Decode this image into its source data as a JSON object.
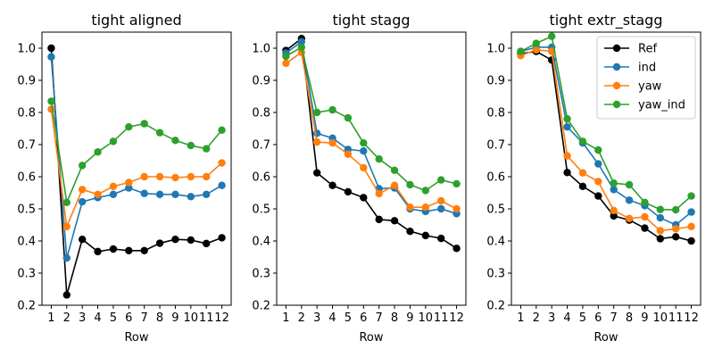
{
  "chart_data": [
    {
      "type": "line",
      "title": "tight aligned",
      "xlabel": "Row",
      "ylabel": "",
      "x": [
        1,
        2,
        3,
        4,
        5,
        6,
        7,
        8,
        9,
        10,
        11,
        12
      ],
      "ylim": [
        0.2,
        1.05
      ],
      "yticks": [
        "0.2",
        "0.3",
        "0.4",
        "0.5",
        "0.6",
        "0.7",
        "0.8",
        "0.9",
        "1.0"
      ],
      "xticks": [
        "1",
        "2",
        "3",
        "4",
        "5",
        "6",
        "7",
        "8",
        "9",
        "10",
        "11",
        "12"
      ],
      "series": [
        {
          "key": "ref",
          "color": "#000000",
          "values": [
            1.0,
            0.232,
            0.405,
            0.367,
            0.375,
            0.37,
            0.37,
            0.393,
            0.405,
            0.403,
            0.392,
            0.41
          ]
        },
        {
          "key": "ind",
          "color": "#1f77b4",
          "values": [
            0.973,
            0.347,
            0.522,
            0.535,
            0.545,
            0.565,
            0.548,
            0.545,
            0.545,
            0.538,
            0.545,
            0.573
          ]
        },
        {
          "key": "yaw",
          "color": "#ff7f0e",
          "values": [
            0.81,
            0.445,
            0.56,
            0.545,
            0.57,
            0.582,
            0.6,
            0.6,
            0.597,
            0.6,
            0.6,
            0.643
          ]
        },
        {
          "key": "yaw_ind",
          "color": "#2ca02c",
          "values": [
            0.835,
            0.52,
            0.635,
            0.677,
            0.71,
            0.755,
            0.765,
            0.737,
            0.713,
            0.697,
            0.687,
            0.745
          ]
        }
      ],
      "legend": null
    },
    {
      "type": "line",
      "title": "tight stagg",
      "xlabel": "Row",
      "ylabel": "",
      "x": [
        1,
        2,
        3,
        4,
        5,
        6,
        7,
        8,
        9,
        10,
        11,
        12
      ],
      "ylim": [
        0.2,
        1.05
      ],
      "yticks": [
        "0.2",
        "0.3",
        "0.4",
        "0.5",
        "0.6",
        "0.7",
        "0.8",
        "0.9",
        "1.0"
      ],
      "xticks": [
        "1",
        "2",
        "3",
        "4",
        "5",
        "6",
        "7",
        "8",
        "9",
        "10",
        "11",
        "12"
      ],
      "series": [
        {
          "key": "ref",
          "color": "#000000",
          "values": [
            0.993,
            1.03,
            0.612,
            0.573,
            0.553,
            0.535,
            0.467,
            0.463,
            0.43,
            0.417,
            0.408,
            0.377
          ]
        },
        {
          "key": "ind",
          "color": "#1f77b4",
          "values": [
            0.985,
            1.02,
            0.735,
            0.72,
            0.685,
            0.68,
            0.563,
            0.565,
            0.5,
            0.492,
            0.5,
            0.485
          ]
        },
        {
          "key": "yaw",
          "color": "#ff7f0e",
          "values": [
            0.953,
            0.987,
            0.708,
            0.705,
            0.67,
            0.628,
            0.547,
            0.573,
            0.505,
            0.505,
            0.525,
            0.5
          ]
        },
        {
          "key": "yaw_ind",
          "color": "#2ca02c",
          "values": [
            0.975,
            1.003,
            0.8,
            0.808,
            0.783,
            0.705,
            0.655,
            0.62,
            0.575,
            0.557,
            0.59,
            0.578
          ]
        }
      ],
      "legend": null
    },
    {
      "type": "line",
      "title": "tight extr_stagg",
      "xlabel": "Row",
      "ylabel": "",
      "x": [
        1,
        2,
        3,
        4,
        5,
        6,
        7,
        8,
        9,
        10,
        11,
        12
      ],
      "ylim": [
        0.2,
        1.05
      ],
      "yticks": [
        "0.2",
        "0.3",
        "0.4",
        "0.5",
        "0.6",
        "0.7",
        "0.8",
        "0.9",
        "1.0"
      ],
      "xticks": [
        "1",
        "2",
        "3",
        "4",
        "5",
        "6",
        "7",
        "8",
        "9",
        "10",
        "11",
        "12"
      ],
      "series": [
        {
          "name": "Ref",
          "key": "ref",
          "color": "#000000",
          "values": [
            0.983,
            0.99,
            0.963,
            0.613,
            0.57,
            0.54,
            0.478,
            0.465,
            0.44,
            0.407,
            0.413,
            0.4
          ]
        },
        {
          "name": "ind",
          "key": "ind",
          "color": "#1f77b4",
          "values": [
            0.99,
            1.003,
            1.003,
            0.755,
            0.705,
            0.64,
            0.56,
            0.527,
            0.51,
            0.472,
            0.45,
            0.49
          ]
        },
        {
          "name": "yaw",
          "key": "yaw",
          "color": "#ff7f0e",
          "values": [
            0.977,
            0.995,
            0.99,
            0.665,
            0.612,
            0.585,
            0.495,
            0.47,
            0.475,
            0.432,
            0.438,
            0.445
          ]
        },
        {
          "name": "yaw_ind",
          "key": "yaw_ind",
          "color": "#2ca02c",
          "values": [
            0.99,
            1.015,
            1.037,
            0.78,
            0.71,
            0.683,
            0.58,
            0.575,
            0.52,
            0.498,
            0.497,
            0.54
          ]
        }
      ],
      "legend": "top-right"
    }
  ]
}
